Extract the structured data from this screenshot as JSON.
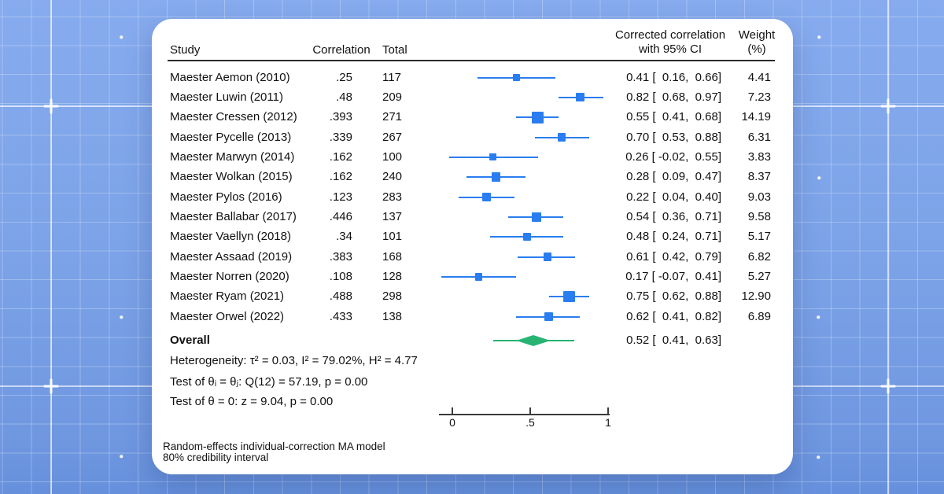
{
  "colors": {
    "background_blue": "#7aa1e6",
    "grid_white": "#ffffff",
    "card_white": "#ffffff",
    "marker_blue": "#2a7df0",
    "overall_green": "#27b473",
    "text_black": "#111111"
  },
  "chart_data": {
    "type": "forest",
    "columns": {
      "study": "Study",
      "correlation": "Correlation",
      "total": "Total",
      "ci_line1": "Corrected correlation",
      "ci_line2": "with 95% CI",
      "weight_line1": "Weight",
      "weight_line2": "(%)"
    },
    "studies": [
      {
        "label": "Maester Aemon (2010)",
        "correlation": ".25",
        "total": "117",
        "est": 0.41,
        "ci_lo": 0.16,
        "ci_hi": 0.66,
        "ci_text": "0.41 [  0.16,  0.66]",
        "weight": 4.41,
        "weight_text": "4.41"
      },
      {
        "label": "Maester Luwin (2011)",
        "correlation": ".48",
        "total": "209",
        "est": 0.82,
        "ci_lo": 0.68,
        "ci_hi": 0.97,
        "ci_text": "0.82 [  0.68,  0.97]",
        "weight": 7.23,
        "weight_text": "7.23"
      },
      {
        "label": "Maester Cressen (2012)",
        "correlation": ".393",
        "total": "271",
        "est": 0.55,
        "ci_lo": 0.41,
        "ci_hi": 0.68,
        "ci_text": "0.55 [  0.41,  0.68]",
        "weight": 14.19,
        "weight_text": "14.19"
      },
      {
        "label": "Maester Pycelle (2013)",
        "correlation": ".339",
        "total": "267",
        "est": 0.7,
        "ci_lo": 0.53,
        "ci_hi": 0.88,
        "ci_text": "0.70 [  0.53,  0.88]",
        "weight": 6.31,
        "weight_text": "6.31"
      },
      {
        "label": "Maester Marwyn (2014)",
        "correlation": ".162",
        "total": "100",
        "est": 0.26,
        "ci_lo": -0.02,
        "ci_hi": 0.55,
        "ci_text": "0.26 [ -0.02,  0.55]",
        "weight": 3.83,
        "weight_text": "3.83"
      },
      {
        "label": "Maester Wolkan (2015)",
        "correlation": ".162",
        "total": "240",
        "est": 0.28,
        "ci_lo": 0.09,
        "ci_hi": 0.47,
        "ci_text": "0.28 [  0.09,  0.47]",
        "weight": 8.37,
        "weight_text": "8.37"
      },
      {
        "label": "Maester Pylos (2016)",
        "correlation": ".123",
        "total": "283",
        "est": 0.22,
        "ci_lo": 0.04,
        "ci_hi": 0.4,
        "ci_text": "0.22 [  0.04,  0.40]",
        "weight": 9.03,
        "weight_text": "9.03"
      },
      {
        "label": "Maester Ballabar (2017)",
        "correlation": ".446",
        "total": "137",
        "est": 0.54,
        "ci_lo": 0.36,
        "ci_hi": 0.71,
        "ci_text": "0.54 [  0.36,  0.71]",
        "weight": 9.58,
        "weight_text": "9.58"
      },
      {
        "label": "Maester Vaellyn (2018)",
        "correlation": ".34",
        "total": "101",
        "est": 0.48,
        "ci_lo": 0.24,
        "ci_hi": 0.71,
        "ci_text": "0.48 [  0.24,  0.71]",
        "weight": 5.17,
        "weight_text": "5.17"
      },
      {
        "label": "Maester Assaad (2019)",
        "correlation": ".383",
        "total": "168",
        "est": 0.61,
        "ci_lo": 0.42,
        "ci_hi": 0.79,
        "ci_text": "0.61 [  0.42,  0.79]",
        "weight": 6.82,
        "weight_text": "6.82"
      },
      {
        "label": "Maester Norren (2020)",
        "correlation": ".108",
        "total": "128",
        "est": 0.17,
        "ci_lo": -0.07,
        "ci_hi": 0.41,
        "ci_text": "0.17 [ -0.07,  0.41]",
        "weight": 5.27,
        "weight_text": "5.27"
      },
      {
        "label": "Maester Ryam (2021)",
        "correlation": ".488",
        "total": "298",
        "est": 0.75,
        "ci_lo": 0.62,
        "ci_hi": 0.88,
        "ci_text": "0.75 [  0.62,  0.88]",
        "weight": 12.9,
        "weight_text": "12.90"
      },
      {
        "label": "Maester Orwel (2022)",
        "correlation": ".433",
        "total": "138",
        "est": 0.62,
        "ci_lo": 0.41,
        "ci_hi": 0.82,
        "ci_text": "0.62 [  0.41,  0.82]",
        "weight": 6.89,
        "weight_text": "6.89"
      }
    ],
    "overall": {
      "label": "Overall",
      "est": 0.52,
      "ci_lo": 0.41,
      "ci_hi": 0.63,
      "ci_text": "0.52 [  0.41,  0.63]",
      "cred_lo": 0.26,
      "cred_hi": 0.78
    },
    "stats": [
      "Heterogeneity: τ² = 0.03, I² = 79.02%, H² = 4.77",
      "Test of θᵢ = θⱼ: Q(12) = 57.19, p = 0.00",
      "Test of θ = 0: z = 9.04, p = 0.00"
    ],
    "axis": {
      "range": [
        0,
        1
      ],
      "ticks": [
        0,
        0.5,
        1
      ],
      "tick_labels": [
        "0",
        ".5",
        "1"
      ]
    },
    "footnotes": [
      "Random-effects individual-correction MA model",
      "80% credibility interval"
    ]
  }
}
